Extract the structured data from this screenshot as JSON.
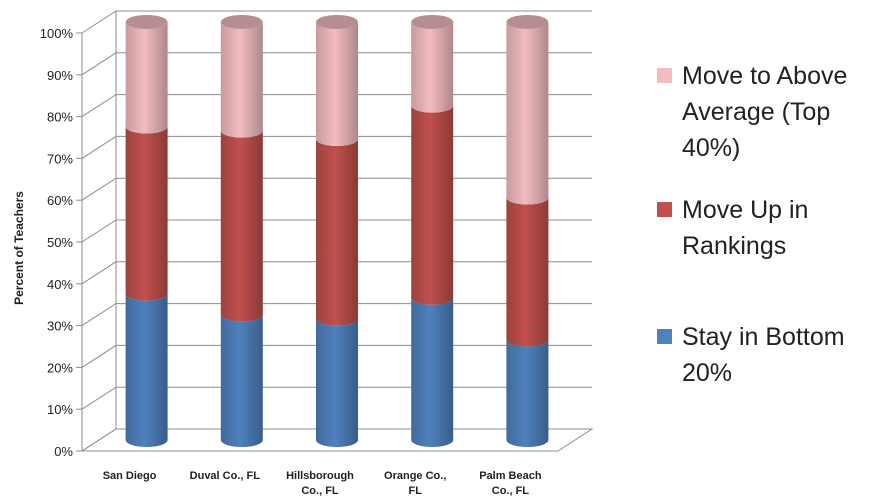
{
  "chart_data": {
    "type": "bar",
    "stacked": true,
    "style": "3d-cylinder",
    "categories": [
      "San Diego",
      "Duval Co., FL",
      "Hillsborough Co., FL",
      "Orange Co., FL",
      "Palm Beach Co., FL"
    ],
    "category_lines": [
      [
        "San Diego"
      ],
      [
        "Duval Co., FL"
      ],
      [
        "Hillsborough",
        "Co., FL"
      ],
      [
        "Orange Co.,",
        "FL"
      ],
      [
        "Palm Beach",
        "Co., FL"
      ]
    ],
    "series": [
      {
        "name": "Stay in Bottom 20%",
        "color": "#4F81BD",
        "values": [
          35,
          30,
          29,
          34,
          24
        ]
      },
      {
        "name": "Move Up in Rankings",
        "color": "#C0504D",
        "values": [
          40,
          44,
          43,
          46,
          34
        ]
      },
      {
        "name": "Move to Above Average (Top 40%)",
        "color": "#F2BCC0",
        "values": [
          25,
          26,
          28,
          20,
          42
        ]
      }
    ],
    "ylabel": "Percent of Teachers",
    "xlabel": "",
    "ylim": [
      0,
      100
    ],
    "yticks": [
      "0%",
      "10%",
      "20%",
      "30%",
      "40%",
      "50%",
      "60%",
      "70%",
      "80%",
      "90%",
      "100%"
    ],
    "grid": true,
    "legend_position": "right"
  }
}
